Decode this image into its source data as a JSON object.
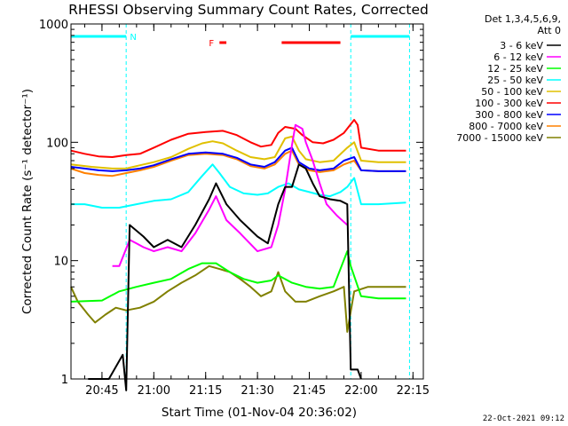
{
  "chart_data": {
    "type": "line",
    "title": "RHESSI Observing Summary Count Rates, Corrected",
    "xlabel": "Start Time (01-Nov-04 20:36:02)",
    "ylabel": "Corrected Count Rate (s⁻¹ detector⁻¹)",
    "y_scale": "log",
    "ylim": [
      1,
      1000
    ],
    "xlim": [
      "20:36:02",
      "22:18:00"
    ],
    "x_ticks": [
      "20:45",
      "21:00",
      "21:15",
      "21:30",
      "21:45",
      "22:00",
      "22:15"
    ],
    "y_ticks": [
      "1",
      "10",
      "100",
      "1000"
    ],
    "legend_header": [
      "Det 1,3,4,5,6,9,",
      "Att 0"
    ],
    "legend_position": "right",
    "timestamp": "22-Oct-2021 09:12",
    "flags": [
      {
        "label": "N",
        "color": "#00ffff",
        "spans": [
          [
            "20:36",
            "20:52"
          ],
          [
            "21:57",
            "22:14"
          ]
        ]
      },
      {
        "label": "F",
        "color": "#ff0000",
        "spans": [
          [
            "21:19",
            "21:21"
          ],
          [
            "21:37",
            "21:54"
          ]
        ]
      }
    ],
    "gap_markers": [
      "20:52",
      "21:57",
      "22:14"
    ],
    "series": [
      {
        "name": "3 - 6 keV",
        "color": "#000000",
        "points": [
          [
            "20:41",
            1.0
          ],
          [
            "20:47",
            1.0
          ],
          [
            "20:51",
            1.6
          ],
          [
            "20:52",
            0.8
          ],
          [
            "20:53",
            20
          ],
          [
            "20:57",
            16
          ],
          [
            "21:00",
            13
          ],
          [
            "21:04",
            15
          ],
          [
            "21:08",
            13
          ],
          [
            "21:12",
            20
          ],
          [
            "21:16",
            33
          ],
          [
            "21:18",
            45
          ],
          [
            "21:21",
            30
          ],
          [
            "21:25",
            22
          ],
          [
            "21:30",
            16
          ],
          [
            "21:33",
            14
          ],
          [
            "21:36",
            30
          ],
          [
            "21:38",
            42
          ],
          [
            "21:40",
            42
          ],
          [
            "21:42",
            65
          ],
          [
            "21:44",
            60
          ],
          [
            "21:46",
            45
          ],
          [
            "21:48",
            35
          ],
          [
            "21:51",
            33
          ],
          [
            "21:54",
            32
          ],
          [
            "21:56",
            30
          ],
          [
            "21:57",
            1.2
          ],
          [
            "21:59",
            1.2
          ],
          [
            "22:00",
            1.0
          ]
        ]
      },
      {
        "name": "6 - 12 keV",
        "color": "#ff00ff",
        "points": [
          [
            "20:48",
            9
          ],
          [
            "20:50",
            9
          ],
          [
            "20:53",
            15
          ],
          [
            "20:55",
            14
          ],
          [
            "20:57",
            13
          ],
          [
            "21:00",
            12
          ],
          [
            "21:04",
            13
          ],
          [
            "21:08",
            12
          ],
          [
            "21:12",
            17
          ],
          [
            "21:16",
            27
          ],
          [
            "21:18",
            35
          ],
          [
            "21:21",
            22
          ],
          [
            "21:25",
            17
          ],
          [
            "21:30",
            12
          ],
          [
            "21:34",
            13
          ],
          [
            "21:36",
            20
          ],
          [
            "21:38",
            40
          ],
          [
            "21:40",
            95
          ],
          [
            "21:41",
            140
          ],
          [
            "21:43",
            130
          ],
          [
            "21:44",
            100
          ],
          [
            "21:46",
            70
          ],
          [
            "21:48",
            45
          ],
          [
            "21:50",
            30
          ],
          [
            "21:53",
            24
          ],
          [
            "21:56",
            20
          ]
        ]
      },
      {
        "name": "12 - 25 keV",
        "color": "#00ff00",
        "points": [
          [
            "20:36",
            4.5
          ],
          [
            "20:45",
            4.6
          ],
          [
            "20:50",
            5.5
          ],
          [
            "20:55",
            6.0
          ],
          [
            "21:00",
            6.5
          ],
          [
            "21:05",
            7.0
          ],
          [
            "21:10",
            8.5
          ],
          [
            "21:14",
            9.5
          ],
          [
            "21:18",
            9.5
          ],
          [
            "21:22",
            8.0
          ],
          [
            "21:26",
            7.0
          ],
          [
            "21:30",
            6.5
          ],
          [
            "21:34",
            6.8
          ],
          [
            "21:36",
            7.5
          ],
          [
            "21:40",
            6.5
          ],
          [
            "21:44",
            6.0
          ],
          [
            "21:48",
            5.8
          ],
          [
            "21:52",
            6.0
          ],
          [
            "21:56",
            12
          ],
          [
            "21:57",
            9
          ],
          [
            "22:00",
            5.0
          ],
          [
            "22:05",
            4.8
          ],
          [
            "22:13",
            4.8
          ]
        ]
      },
      {
        "name": "25 - 50 keV",
        "color": "#00ffff",
        "points": [
          [
            "20:36",
            30
          ],
          [
            "20:40",
            30
          ],
          [
            "20:45",
            28
          ],
          [
            "20:50",
            28
          ],
          [
            "20:55",
            30
          ],
          [
            "21:00",
            32
          ],
          [
            "21:05",
            33
          ],
          [
            "21:10",
            38
          ],
          [
            "21:14",
            52
          ],
          [
            "21:17",
            65
          ],
          [
            "21:19",
            55
          ],
          [
            "21:22",
            42
          ],
          [
            "21:26",
            37
          ],
          [
            "21:30",
            36
          ],
          [
            "21:33",
            37
          ],
          [
            "21:36",
            42
          ],
          [
            "21:39",
            45
          ],
          [
            "21:42",
            40
          ],
          [
            "21:45",
            38
          ],
          [
            "21:48",
            36
          ],
          [
            "21:51",
            35
          ],
          [
            "21:54",
            38
          ],
          [
            "21:56",
            42
          ],
          [
            "21:58",
            50
          ],
          [
            "22:00",
            30
          ],
          [
            "22:05",
            30
          ],
          [
            "22:13",
            31
          ]
        ]
      },
      {
        "name": "50 - 100 keV",
        "color": "#e0c000",
        "points": [
          [
            "20:36",
            65
          ],
          [
            "20:42",
            62
          ],
          [
            "20:48",
            60
          ],
          [
            "20:52",
            60
          ],
          [
            "20:57",
            65
          ],
          [
            "21:00",
            68
          ],
          [
            "21:05",
            75
          ],
          [
            "21:10",
            88
          ],
          [
            "21:14",
            98
          ],
          [
            "21:17",
            102
          ],
          [
            "21:20",
            98
          ],
          [
            "21:24",
            85
          ],
          [
            "21:28",
            75
          ],
          [
            "21:32",
            72
          ],
          [
            "21:35",
            75
          ],
          [
            "21:38",
            108
          ],
          [
            "21:40",
            112
          ],
          [
            "21:42",
            85
          ],
          [
            "21:44",
            72
          ],
          [
            "21:48",
            68
          ],
          [
            "21:52",
            70
          ],
          [
            "21:56",
            90
          ],
          [
            "21:58",
            100
          ],
          [
            "22:00",
            70
          ],
          [
            "22:05",
            68
          ],
          [
            "22:13",
            68
          ]
        ]
      },
      {
        "name": "100 - 300 keV",
        "color": "#ff0000",
        "points": [
          [
            "20:36",
            85
          ],
          [
            "20:40",
            80
          ],
          [
            "20:44",
            76
          ],
          [
            "20:48",
            75
          ],
          [
            "20:52",
            78
          ],
          [
            "20:56",
            80
          ],
          [
            "21:00",
            90
          ],
          [
            "21:05",
            105
          ],
          [
            "21:10",
            118
          ],
          [
            "21:15",
            122
          ],
          [
            "21:20",
            125
          ],
          [
            "21:24",
            115
          ],
          [
            "21:28",
            100
          ],
          [
            "21:31",
            92
          ],
          [
            "21:34",
            95
          ],
          [
            "21:36",
            120
          ],
          [
            "21:38",
            135
          ],
          [
            "21:41",
            130
          ],
          [
            "21:43",
            115
          ],
          [
            "21:46",
            100
          ],
          [
            "21:49",
            98
          ],
          [
            "21:52",
            105
          ],
          [
            "21:55",
            120
          ],
          [
            "21:58",
            155
          ],
          [
            "21:59",
            140
          ],
          [
            "22:00",
            90
          ],
          [
            "22:05",
            85
          ],
          [
            "22:13",
            85
          ]
        ]
      },
      {
        "name": "300 - 800 keV",
        "color": "#0000ff",
        "points": [
          [
            "20:36",
            62
          ],
          [
            "20:40",
            60
          ],
          [
            "20:44",
            58
          ],
          [
            "20:48",
            57
          ],
          [
            "20:52",
            58
          ],
          [
            "20:56",
            60
          ],
          [
            "21:00",
            64
          ],
          [
            "21:05",
            72
          ],
          [
            "21:10",
            80
          ],
          [
            "21:15",
            82
          ],
          [
            "21:20",
            80
          ],
          [
            "21:24",
            74
          ],
          [
            "21:28",
            65
          ],
          [
            "21:32",
            62
          ],
          [
            "21:35",
            68
          ],
          [
            "21:38",
            85
          ],
          [
            "21:40",
            90
          ],
          [
            "21:42",
            68
          ],
          [
            "21:45",
            60
          ],
          [
            "21:48",
            58
          ],
          [
            "21:52",
            60
          ],
          [
            "21:55",
            70
          ],
          [
            "21:58",
            75
          ],
          [
            "22:00",
            58
          ],
          [
            "22:05",
            57
          ],
          [
            "22:13",
            57
          ]
        ]
      },
      {
        "name": "800 - 7000 keV",
        "color": "#ff8000",
        "points": [
          [
            "20:36",
            60
          ],
          [
            "20:40",
            55
          ],
          [
            "20:44",
            53
          ],
          [
            "20:48",
            52
          ],
          [
            "20:52",
            55
          ],
          [
            "20:56",
            58
          ],
          [
            "21:00",
            62
          ],
          [
            "21:05",
            70
          ],
          [
            "21:10",
            78
          ],
          [
            "21:15",
            80
          ],
          [
            "21:20",
            78
          ],
          [
            "21:24",
            72
          ],
          [
            "21:28",
            63
          ],
          [
            "21:32",
            60
          ],
          [
            "21:35",
            65
          ],
          [
            "21:38",
            80
          ],
          [
            "21:40",
            85
          ],
          [
            "21:42",
            65
          ],
          [
            "21:45",
            58
          ],
          [
            "21:48",
            56
          ],
          [
            "21:52",
            58
          ],
          [
            "21:55",
            65
          ],
          [
            "21:58",
            70
          ],
          [
            "22:00",
            58
          ],
          [
            "22:05",
            57
          ],
          [
            "22:13",
            57
          ]
        ]
      },
      {
        "name": "7000 - 15000 keV",
        "color": "#808000",
        "points": [
          [
            "20:36",
            6.0
          ],
          [
            "20:38",
            4.5
          ],
          [
            "20:41",
            3.5
          ],
          [
            "20:43",
            3.0
          ],
          [
            "20:46",
            3.5
          ],
          [
            "20:49",
            4.0
          ],
          [
            "20:52",
            3.8
          ],
          [
            "20:56",
            4.0
          ],
          [
            "21:00",
            4.5
          ],
          [
            "21:04",
            5.5
          ],
          [
            "21:08",
            6.5
          ],
          [
            "21:12",
            7.5
          ],
          [
            "21:16",
            9.0
          ],
          [
            "21:19",
            8.5
          ],
          [
            "21:22",
            8.0
          ],
          [
            "21:25",
            7.0
          ],
          [
            "21:28",
            6.0
          ],
          [
            "21:31",
            5.0
          ],
          [
            "21:34",
            5.5
          ],
          [
            "21:36",
            8.0
          ],
          [
            "21:38",
            5.5
          ],
          [
            "21:41",
            4.5
          ],
          [
            "21:44",
            4.5
          ],
          [
            "21:48",
            5.0
          ],
          [
            "21:52",
            5.5
          ],
          [
            "21:55",
            6.0
          ],
          [
            "21:56",
            2.5
          ],
          [
            "21:58",
            5.5
          ],
          [
            "22:02",
            6.0
          ],
          [
            "22:06",
            6.0
          ],
          [
            "22:13",
            6.0
          ]
        ]
      }
    ]
  }
}
